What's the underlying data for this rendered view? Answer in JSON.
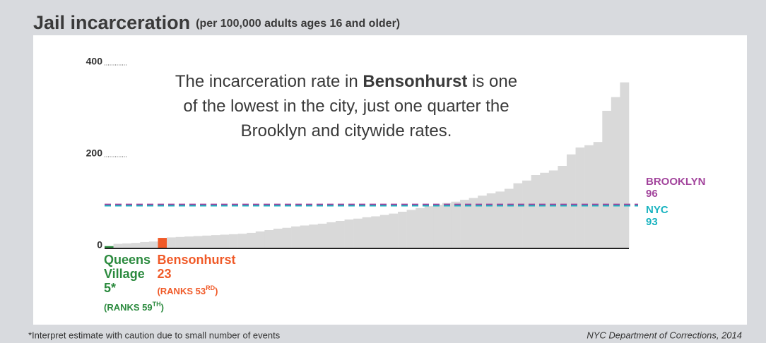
{
  "chart_data": {
    "type": "bar",
    "title": "Jail incarceration",
    "subtitle": "(per 100,000 adults ages 16 and older)",
    "annotation": [
      [
        "The incarceration rate in ",
        "Bensonhurst",
        " is one"
      ],
      [
        "of the lowest in the city, just one quarter the"
      ],
      [
        "Brooklyn and citywide rates."
      ]
    ],
    "ylim": [
      0,
      400
    ],
    "yticks": [
      0,
      200,
      400
    ],
    "color": "#d9d9d9",
    "categories": [
      "Queens Village",
      null,
      null,
      null,
      null,
      null,
      "Bensonhurst",
      null,
      null,
      null,
      null,
      null,
      null,
      null,
      null,
      null,
      null,
      null,
      null,
      null,
      null,
      null,
      null,
      null,
      null,
      null,
      null,
      null,
      null,
      null,
      null,
      null,
      null,
      null,
      null,
      null,
      null,
      null,
      null,
      null,
      null,
      null,
      null,
      null,
      null,
      null,
      null,
      null,
      null,
      null,
      null,
      null,
      null,
      null,
      null,
      null,
      null,
      null,
      null
    ],
    "values": [
      5,
      10,
      11,
      12,
      14,
      15,
      23,
      24,
      25,
      26,
      27,
      28,
      29,
      30,
      31,
      32,
      34,
      37,
      40,
      43,
      45,
      48,
      50,
      52,
      54,
      57,
      60,
      63,
      65,
      68,
      70,
      73,
      76,
      80,
      84,
      88,
      92,
      95,
      99,
      102,
      106,
      110,
      115,
      120,
      124,
      130,
      142,
      148,
      160,
      165,
      170,
      180,
      205,
      220,
      225,
      232,
      300,
      330,
      362
    ],
    "value_labels": [
      "5*",
      null,
      null,
      null,
      null,
      null,
      "23",
      null,
      null,
      null,
      null,
      null,
      null,
      null,
      null,
      null,
      null,
      null,
      null,
      null,
      null,
      null,
      null,
      null,
      null,
      null,
      null,
      null,
      null,
      null,
      null,
      null,
      null,
      null,
      null,
      null,
      null,
      null,
      null,
      null,
      null,
      null,
      null,
      null,
      null,
      null,
      null,
      null,
      null,
      null,
      null,
      null,
      null,
      null,
      null,
      null,
      null,
      null,
      null
    ],
    "rank_labels": [
      [
        "(RANKS 59",
        "TH",
        ")"
      ],
      null,
      null,
      null,
      null,
      null,
      [
        "(RANKS 53",
        "RD",
        ")"
      ],
      null,
      null,
      null,
      null,
      null,
      null,
      null,
      null,
      null,
      null,
      null,
      null,
      null,
      null,
      null,
      null,
      null,
      null,
      null,
      null,
      null,
      null,
      null,
      null,
      null,
      null,
      null,
      null,
      null,
      null,
      null,
      null,
      null,
      null,
      null,
      null,
      null,
      null,
      null,
      null,
      null,
      null,
      null,
      null,
      null,
      null,
      null,
      null,
      null,
      null,
      null,
      null
    ],
    "highlight_colors": [
      "#2b8a3e",
      null,
      null,
      null,
      null,
      null,
      "#f05a28",
      null,
      null,
      null,
      null,
      null,
      null,
      null,
      null,
      null,
      null,
      null,
      null,
      null,
      null,
      null,
      null,
      null,
      null,
      null,
      null,
      null,
      null,
      null,
      null,
      null,
      null,
      null,
      null,
      null,
      null,
      null,
      null,
      null,
      null,
      null,
      null,
      null,
      null,
      null,
      null,
      null,
      null,
      null,
      null,
      null,
      null,
      null,
      null,
      null,
      null,
      null,
      null
    ],
    "reference_lines": [
      {
        "name": "BROOKLYN",
        "value": 96,
        "color": "#a2449c"
      },
      {
        "name": "NYC",
        "value": 93,
        "color": "#19b3c0"
      }
    ],
    "note": "*Interpret estimate with caution due to small number of events",
    "source": "NYC Department of Corrections, 2014"
  }
}
